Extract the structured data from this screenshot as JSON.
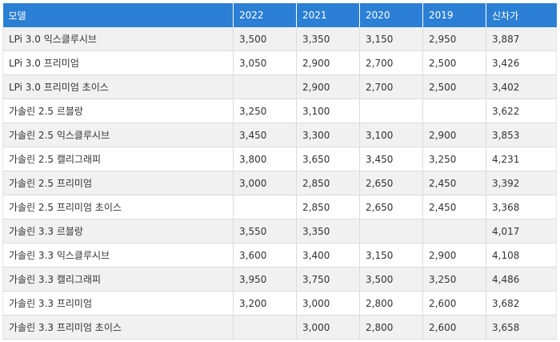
{
  "table": {
    "headers": [
      "모델",
      "2022",
      "2021",
      "2020",
      "2019",
      "신차가"
    ],
    "rows": [
      [
        "LPi 3.0 익스클루시브",
        "3,500",
        "3,350",
        "3,150",
        "2,950",
        "3,887"
      ],
      [
        "LPi 3.0 프리미엄",
        "3,050",
        "2,900",
        "2,700",
        "2,500",
        "3,426"
      ],
      [
        "LPi 3.0 프리미엄 초이스",
        "",
        "2,900",
        "2,700",
        "2,500",
        "3,402"
      ],
      [
        "가솔린 2.5 르블랑",
        "3,250",
        "3,100",
        "",
        "",
        "3,622"
      ],
      [
        "가솔린 2.5 익스클루시브",
        "3,450",
        "3,300",
        "3,100",
        "2,900",
        "3,853"
      ],
      [
        "가솔린 2.5 캘리그래피",
        "3,800",
        "3,650",
        "3,450",
        "3,250",
        "4,231"
      ],
      [
        "가솔린 2.5 프리미엄",
        "3,000",
        "2,850",
        "2,650",
        "2,450",
        "3,392"
      ],
      [
        "가솔린 2.5 프리미엄 초이스",
        "",
        "2,850",
        "2,650",
        "2,450",
        "3,368"
      ],
      [
        "가솔린 3.3 르블랑",
        "3,550",
        "3,350",
        "",
        "",
        "4,017"
      ],
      [
        "가솔린 3.3 익스클루시브",
        "3,600",
        "3,400",
        "3,150",
        "2,900",
        "4,108"
      ],
      [
        "가솔린 3.3 캘리그래피",
        "3,950",
        "3,750",
        "3,500",
        "3,250",
        "4,486"
      ],
      [
        "가솔린 3.3 프리미엄",
        "3,200",
        "3,000",
        "2,800",
        "2,600",
        "3,682"
      ],
      [
        "가솔린 3.3 프리미엄 초이스",
        "",
        "3,000",
        "2,800",
        "2,600",
        "3,658"
      ]
    ]
  },
  "colors": {
    "header_bg": "#2b7fd4",
    "header_text": "#ffffff",
    "row_alt_bg": "#f1f1f1",
    "border": "#dcdcdc"
  }
}
